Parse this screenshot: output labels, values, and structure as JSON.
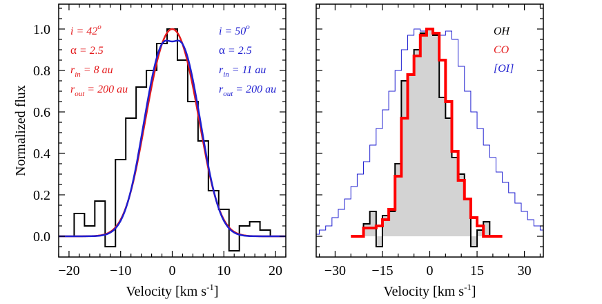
{
  "chart_data": [
    {
      "type": "line",
      "title": "",
      "xlabel": "Velocity [km s",
      "xlabel_sup": "-1",
      "xlabel_end": "]",
      "ylabel": "Normalized flux",
      "xlim": [
        -22,
        22
      ],
      "ylim": [
        -0.1,
        1.12
      ],
      "xticks": [
        -20,
        -10,
        0,
        10,
        20
      ],
      "xtick_labels": [
        "−20",
        "−10",
        "0",
        "10",
        "20"
      ],
      "yticks": [
        0.0,
        0.2,
        0.4,
        0.6,
        0.8,
        1.0
      ],
      "ytick_labels": [
        "0.0",
        "0.2",
        "0.4",
        "0.6",
        "0.8",
        "1.0"
      ],
      "annotations": [
        {
          "color": "#e41a1c",
          "lines": [
            {
              "parts": [
                {
                  "t": "i = 42",
                  "s": "n"
                },
                {
                  "t": "o",
                  "s": "sup"
                }
              ]
            },
            {
              "parts": [
                {
                  "t": "α",
                  "s": "greek"
                },
                {
                  "t": " = 2.5",
                  "s": "n"
                }
              ]
            },
            {
              "parts": [
                {
                  "t": "r",
                  "s": "n"
                },
                {
                  "t": "in",
                  "s": "sub"
                },
                {
                  "t": " = 8 au",
                  "s": "n"
                }
              ]
            },
            {
              "parts": [
                {
                  "t": "r",
                  "s": "n"
                },
                {
                  "t": "out",
                  "s": "sub"
                },
                {
                  "t": " = 200 au",
                  "s": "n"
                }
              ]
            }
          ]
        },
        {
          "color": "#1f1fd0",
          "lines": [
            {
              "parts": [
                {
                  "t": "i = 50",
                  "s": "n"
                },
                {
                  "t": "o",
                  "s": "sup"
                }
              ]
            },
            {
              "parts": [
                {
                  "t": "α",
                  "s": "greek"
                },
                {
                  "t": " = 2.5",
                  "s": "n"
                }
              ]
            },
            {
              "parts": [
                {
                  "t": "r",
                  "s": "n"
                },
                {
                  "t": "in",
                  "s": "sub"
                },
                {
                  "t": " = 11 au",
                  "s": "n"
                }
              ]
            },
            {
              "parts": [
                {
                  "t": "r",
                  "s": "n"
                },
                {
                  "t": "out",
                  "s": "sub"
                },
                {
                  "t": " = 200 au",
                  "s": "n"
                }
              ]
            }
          ]
        }
      ],
      "series": [
        {
          "name": "observed",
          "style": "step",
          "color": "#000000",
          "width": 2,
          "edges": [
            -19,
            -17,
            -15,
            -13,
            -11,
            -9,
            -7,
            -5,
            -3,
            -1,
            1,
            3,
            5,
            7,
            9,
            11,
            13,
            15,
            17,
            19
          ],
          "values": [
            0.11,
            0.05,
            0.17,
            -0.05,
            0.37,
            0.57,
            0.72,
            0.8,
            0.93,
            1.0,
            0.85,
            0.65,
            0.46,
            0.22,
            0.13,
            -0.07,
            0.05,
            0.07,
            0.03
          ]
        },
        {
          "name": "model i=42",
          "style": "model",
          "color": "#e41a1c",
          "width": 2.5,
          "peak_v": 2.6,
          "dip": 0.0,
          "sigma": 3.6,
          "continuum": 0.0
        },
        {
          "name": "model i=50",
          "style": "model",
          "color": "#1f1fd0",
          "width": 2.5,
          "peak_v": 2.8,
          "dip": 0.06,
          "sigma": 3.4,
          "continuum": 0.0
        }
      ]
    },
    {
      "type": "line",
      "title": "",
      "xlabel": "Velocity [km s",
      "xlabel_sup": "-1",
      "xlabel_end": "]",
      "ylabel": "",
      "xlim": [
        -36,
        36
      ],
      "ylim": [
        -0.1,
        1.12
      ],
      "xticks": [
        -30,
        -15,
        0,
        15,
        30
      ],
      "xtick_labels": [
        "−30",
        "−15",
        "0",
        "15",
        "30"
      ],
      "yticks": [
        0.0,
        0.2,
        0.4,
        0.6,
        0.8,
        1.0
      ],
      "ytick_labels": [],
      "legend": {
        "placement": "top-right",
        "entries": [
          {
            "label": "OH",
            "color": "#000000"
          },
          {
            "label": "CO",
            "color": "#e41a1c"
          },
          {
            "label": "[OI]",
            "color": "#1f1fd0"
          }
        ]
      },
      "series": [
        {
          "name": "[OI]",
          "style": "stairs",
          "color": "#1f1fd0",
          "width": 1,
          "centers": [
            -36,
            -34,
            -32,
            -30,
            -28,
            -26,
            -24,
            -22,
            -20,
            -18,
            -16,
            -14,
            -12,
            -10,
            -8,
            -6,
            -4,
            -2,
            0,
            2,
            4,
            6,
            8,
            10,
            12,
            14,
            16,
            18,
            20,
            22,
            24,
            26,
            28,
            30,
            32,
            34,
            36
          ],
          "values": [
            0.01,
            0.03,
            0.05,
            0.09,
            0.13,
            0.18,
            0.24,
            0.3,
            0.36,
            0.44,
            0.52,
            0.61,
            0.7,
            0.8,
            0.9,
            0.97,
            1.0,
            0.99,
            0.98,
            0.96,
            0.97,
            0.99,
            0.95,
            0.82,
            0.7,
            0.6,
            0.52,
            0.44,
            0.38,
            0.31,
            0.26,
            0.21,
            0.16,
            0.12,
            0.08,
            0.05,
            0.03
          ]
        },
        {
          "name": "OH",
          "style": "step",
          "color": "#000000",
          "width": 2,
          "fill": "#d3d3d3",
          "edges": [
            -21,
            -19,
            -17,
            -15,
            -13,
            -11,
            -9,
            -7,
            -5,
            -3,
            -1,
            1,
            3,
            5,
            7,
            9,
            11,
            13,
            15,
            17,
            19
          ],
          "values": [
            0.06,
            0.12,
            -0.05,
            0.1,
            0.12,
            0.35,
            0.75,
            0.78,
            0.9,
            0.98,
            1.0,
            0.97,
            0.67,
            0.57,
            0.38,
            0.3,
            0.18,
            -0.05,
            0.03,
            0.07
          ]
        },
        {
          "name": "CO",
          "style": "step",
          "color": "#ff0000",
          "width": 4,
          "edges": [
            -25,
            -21,
            -19,
            -17,
            -15,
            -13,
            -11,
            -9,
            -7,
            -5,
            -3,
            -1,
            1,
            3,
            5,
            7,
            9,
            11,
            13,
            15,
            17,
            23
          ],
          "values": [
            0.0,
            0.04,
            0.04,
            0.05,
            0.08,
            0.13,
            0.29,
            0.57,
            0.78,
            0.87,
            0.97,
            1.0,
            0.98,
            0.85,
            0.65,
            0.41,
            0.27,
            0.18,
            0.09,
            0.05,
            0.0
          ]
        }
      ]
    }
  ]
}
